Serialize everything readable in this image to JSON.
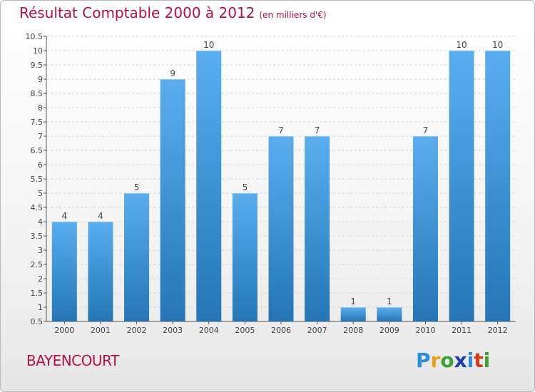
{
  "header": {
    "title": "Résultat Comptable 2000 à 2012",
    "unit": "(en milliers d'€)"
  },
  "commune": "BAYENCOURT",
  "logo": {
    "text": "Proxiti"
  },
  "chart_data": {
    "type": "bar",
    "categories": [
      "2000",
      "2001",
      "2002",
      "2003",
      "2004",
      "2005",
      "2006",
      "2007",
      "2008",
      "2009",
      "2010",
      "2011",
      "2012"
    ],
    "values": [
      4,
      4,
      5,
      9,
      10,
      5,
      7,
      7,
      1,
      1,
      7,
      10,
      10
    ],
    "ylim": [
      0.5,
      10.5
    ],
    "ytick_step": 0.5,
    "yticks": [
      "0.5",
      "1",
      "1.5",
      "2",
      "2.5",
      "3",
      "3.5",
      "4",
      "4.5",
      "5",
      "5.5",
      "6",
      "6.5",
      "7",
      "7.5",
      "8",
      "8.5",
      "9",
      "9.5",
      "10",
      "10.5"
    ],
    "grid": true,
    "bar_color_top": "#5aaef0",
    "bar_color_bottom": "#2476b4",
    "title_color": "#b5104d"
  }
}
